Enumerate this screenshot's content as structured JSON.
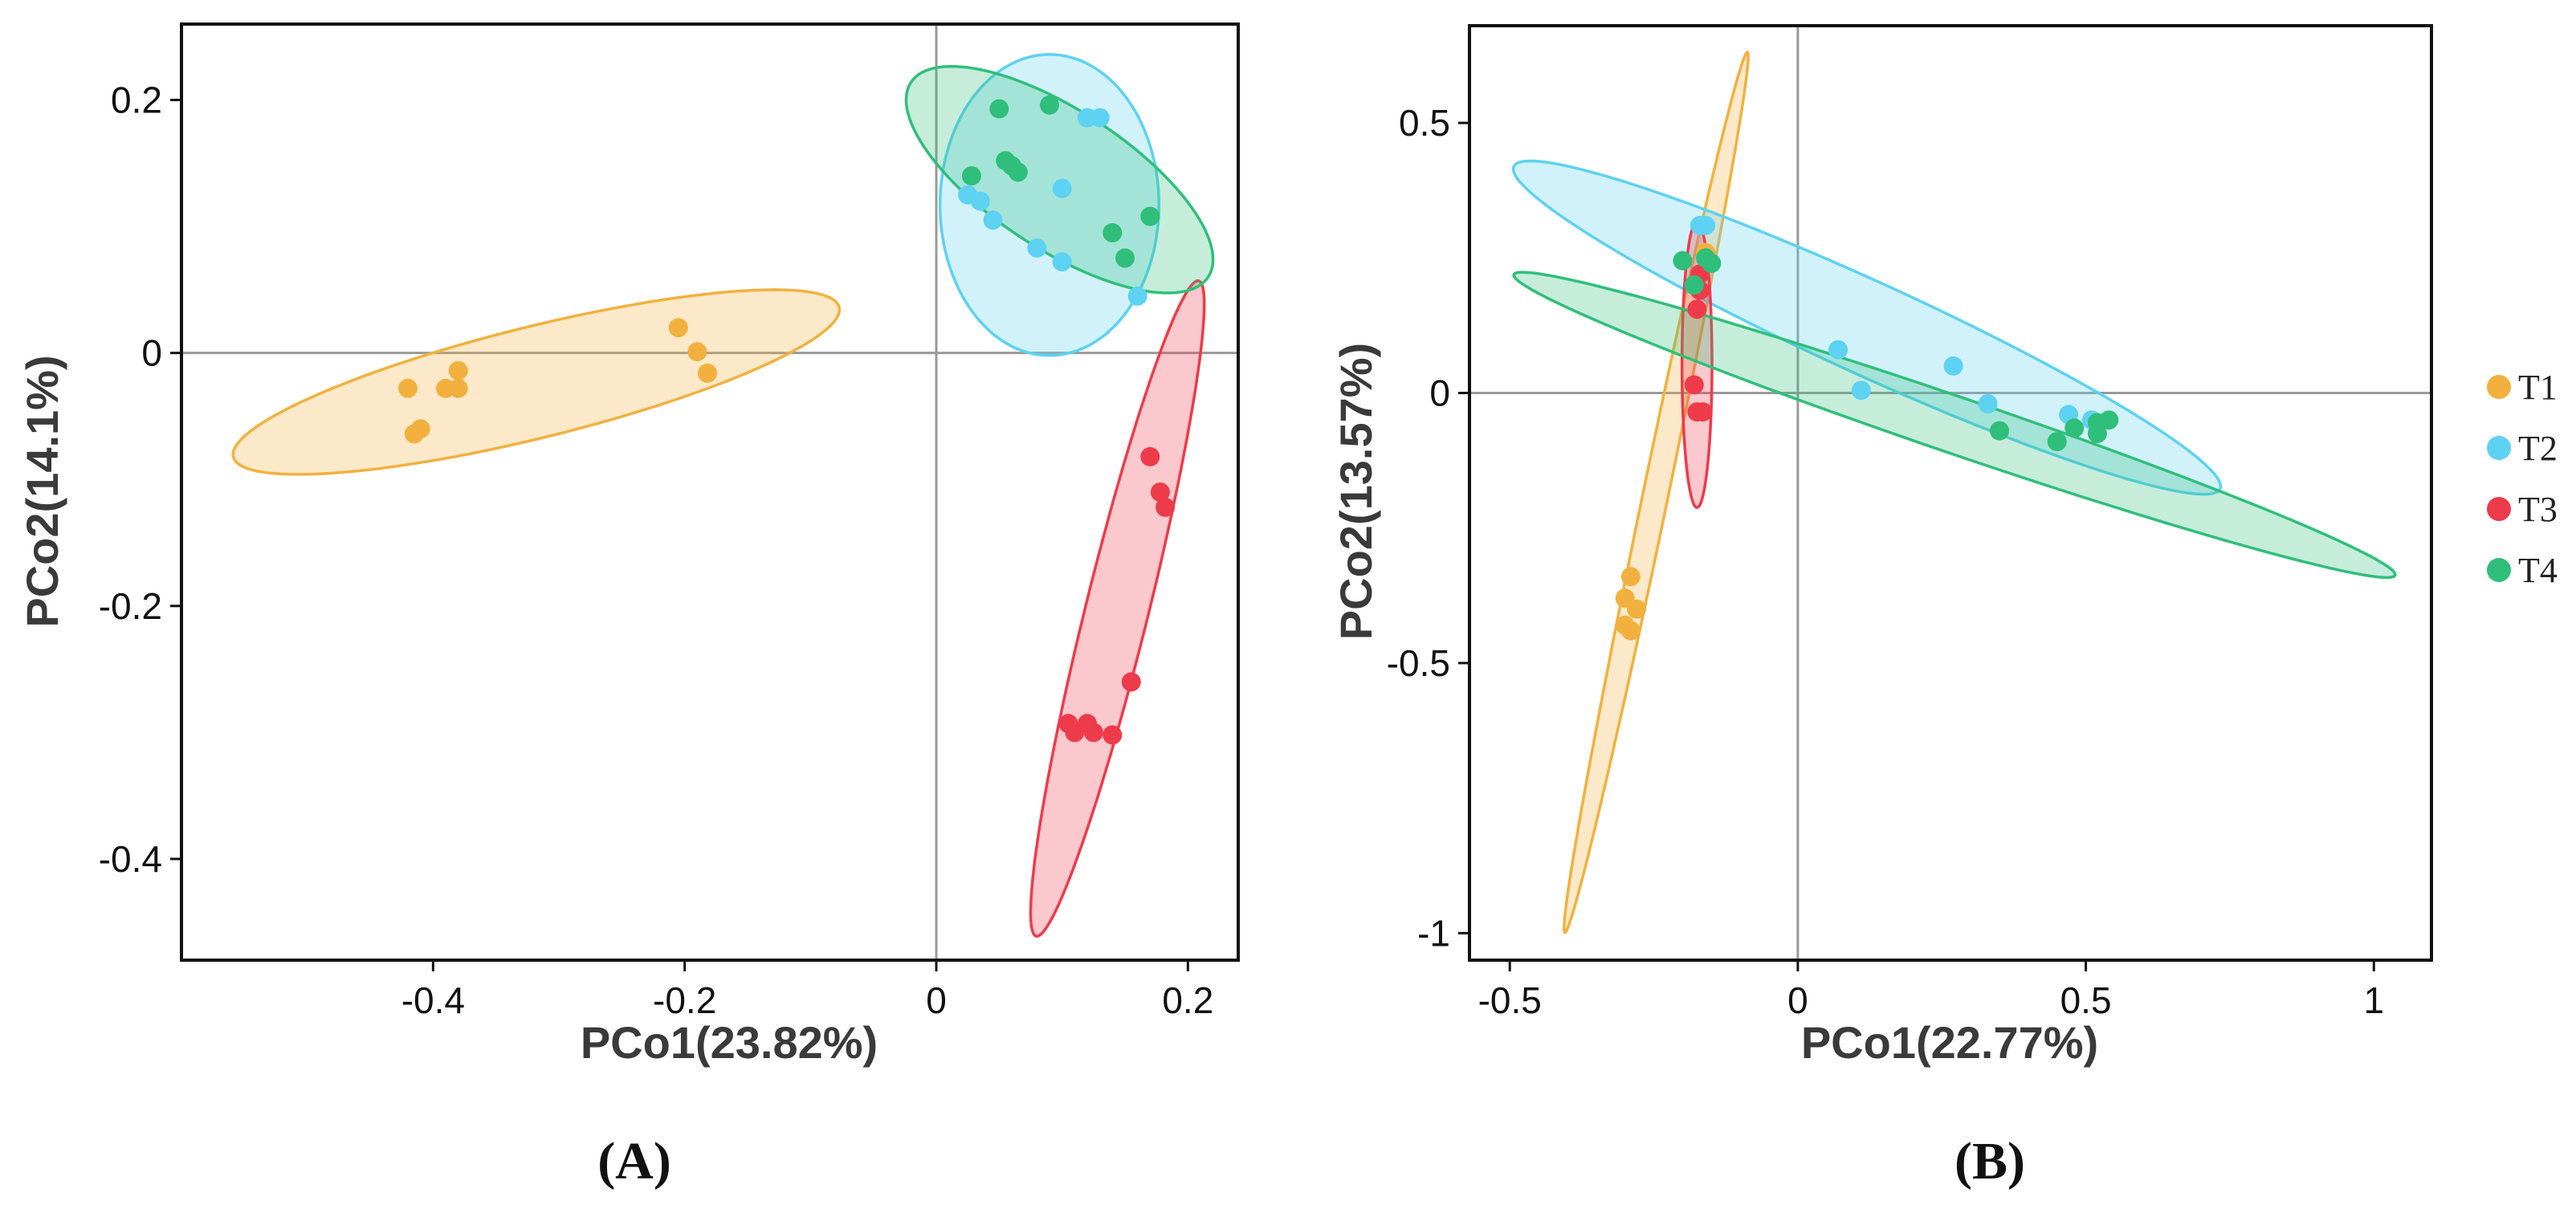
{
  "chart_data": [
    {
      "type": "scatter",
      "panel_label": "(A)",
      "xlabel": "PCo1(23.82%)",
      "ylabel": "PCo2(14.1%)",
      "xlim": [
        -0.6,
        0.24
      ],
      "ylim": [
        -0.48,
        0.26
      ],
      "xticks": [
        -0.4,
        -0.2,
        0,
        0.2
      ],
      "xtick_labels": [
        "-0.4",
        "-0.2",
        "0",
        "0.2"
      ],
      "yticks": [
        0.2,
        0,
        -0.2,
        -0.4
      ],
      "ytick_labels": [
        "0.2",
        "0",
        "-0.2",
        "-0.4"
      ],
      "reference_lines": {
        "x": 0,
        "y": 0
      },
      "series": [
        {
          "name": "T1",
          "color": "#F2B13E",
          "points": [
            [
              -0.205,
              0.02
            ],
            [
              -0.19,
              0.001
            ],
            [
              -0.182,
              -0.016
            ],
            [
              -0.38,
              -0.014
            ],
            [
              -0.39,
              -0.028
            ],
            [
              -0.38,
              -0.028
            ],
            [
              -0.42,
              -0.028
            ],
            [
              -0.41,
              -0.06
            ],
            [
              -0.415,
              -0.064
            ]
          ],
          "ellipse": {
            "center": [
              -0.318,
              -0.023
            ],
            "semi_major": 0.248,
            "semi_minor": 0.044,
            "angle_deg": 13.8
          }
        },
        {
          "name": "T2",
          "color": "#5DD2F2",
          "points": [
            [
              0.12,
              0.186
            ],
            [
              0.13,
              0.186
            ],
            [
              0.025,
              0.125
            ],
            [
              0.035,
              0.12
            ],
            [
              0.045,
              0.105
            ],
            [
              0.1,
              0.13
            ],
            [
              0.08,
              0.083
            ],
            [
              0.1,
              0.072
            ],
            [
              0.16,
              0.045
            ]
          ],
          "ellipse": {
            "center": [
              0.09,
              0.117
            ],
            "semi_major": 0.119,
            "semi_minor": 0.087,
            "angle_deg": 90
          }
        },
        {
          "name": "T3",
          "color": "#EE3B4A",
          "points": [
            [
              0.17,
              -0.082
            ],
            [
              0.178,
              -0.11
            ],
            [
              0.182,
              -0.122
            ],
            [
              0.155,
              -0.26
            ],
            [
              0.105,
              -0.293
            ],
            [
              0.12,
              -0.293
            ],
            [
              0.125,
              -0.3
            ],
            [
              0.11,
              -0.3
            ],
            [
              0.14,
              -0.302
            ]
          ],
          "ellipse": {
            "center": [
              0.144,
              -0.202
            ],
            "semi_major": 0.267,
            "semi_minor": 0.025,
            "angle_deg": 76
          }
        },
        {
          "name": "T4",
          "color": "#2FBF7A",
          "points": [
            [
              0.05,
              0.193
            ],
            [
              0.09,
              0.196
            ],
            [
              0.055,
              0.152
            ],
            [
              0.06,
              0.148
            ],
            [
              0.065,
              0.143
            ],
            [
              0.028,
              0.14
            ],
            [
              0.14,
              0.095
            ],
            [
              0.17,
              0.108
            ],
            [
              0.15,
              0.075
            ]
          ],
          "ellipse": {
            "center": [
              0.098,
              0.137
            ],
            "semi_major": 0.141,
            "semi_minor": 0.055,
            "angle_deg": -33
          }
        }
      ]
    },
    {
      "type": "scatter",
      "panel_label": "(B)",
      "xlabel": "PCo1(22.77%)",
      "ylabel": "PCo2(13.57%)",
      "xlim": [
        -0.57,
        1.1
      ],
      "ylim": [
        -1.05,
        0.68
      ],
      "xticks": [
        -0.5,
        0,
        0.5,
        1
      ],
      "xtick_labels": [
        "-0.5",
        "0",
        "0.5",
        "1"
      ],
      "yticks": [
        0.5,
        0,
        -0.5,
        -1
      ],
      "ytick_labels": [
        "0.5",
        "0",
        "-0.5",
        "-1"
      ],
      "reference_lines": {
        "x": 0,
        "y": 0
      },
      "series": [
        {
          "name": "T1",
          "color": "#F2B13E",
          "points": [
            [
              -0.29,
              -0.34
            ],
            [
              -0.3,
              -0.38
            ],
            [
              -0.28,
              -0.4
            ],
            [
              -0.3,
              -0.43
            ],
            [
              -0.29,
              -0.44
            ],
            [
              -0.17,
              0.22
            ],
            [
              -0.16,
              0.26
            ]
          ],
          "ellipse": {
            "center": [
              -0.246,
              -0.184
            ],
            "semi_major": 0.83,
            "semi_minor": 0.022,
            "angle_deg": 79
          }
        },
        {
          "name": "T2",
          "color": "#5DD2F2",
          "points": [
            [
              -0.17,
              0.31
            ],
            [
              -0.16,
              0.31
            ],
            [
              0.07,
              0.08
            ],
            [
              0.11,
              0.005
            ],
            [
              0.27,
              0.05
            ],
            [
              0.33,
              -0.02
            ],
            [
              0.47,
              -0.04
            ],
            [
              0.51,
              -0.05
            ]
          ],
          "ellipse": {
            "center": [
              0.12,
              0.121
            ],
            "semi_major": 0.682,
            "semi_minor": 0.085,
            "angle_deg": -26
          }
        },
        {
          "name": "T3",
          "color": "#EE3B4A",
          "points": [
            [
              -0.17,
              0.19
            ],
            [
              -0.175,
              0.155
            ],
            [
              -0.18,
              0.015
            ],
            [
              -0.175,
              -0.035
            ],
            [
              -0.165,
              -0.035
            ],
            [
              -0.17,
              0.22
            ]
          ],
          "ellipse": {
            "center": [
              -0.175,
              0.053
            ],
            "semi_major": 0.265,
            "semi_minor": 0.026,
            "angle_deg": 90
          }
        },
        {
          "name": "T4",
          "color": "#2FBF7A",
          "points": [
            [
              -0.2,
              0.245
            ],
            [
              -0.16,
              0.25
            ],
            [
              -0.15,
              0.24
            ],
            [
              0.35,
              -0.07
            ],
            [
              0.45,
              -0.09
            ],
            [
              0.48,
              -0.065
            ],
            [
              0.52,
              -0.055
            ],
            [
              0.52,
              -0.075
            ],
            [
              0.54,
              -0.05
            ],
            [
              -0.18,
              0.2
            ]
          ],
          "ellipse": {
            "center": [
              0.272,
              -0.059
            ],
            "semi_major": 0.814,
            "semi_minor": 0.052,
            "angle_deg": -20
          }
        }
      ]
    }
  ],
  "legend": [
    {
      "label": "T1",
      "color": "#F2B13E"
    },
    {
      "label": "T2",
      "color": "#5DD2F2"
    },
    {
      "label": "T3",
      "color": "#EE3B4A"
    },
    {
      "label": "T4",
      "color": "#2FBF7A"
    }
  ]
}
